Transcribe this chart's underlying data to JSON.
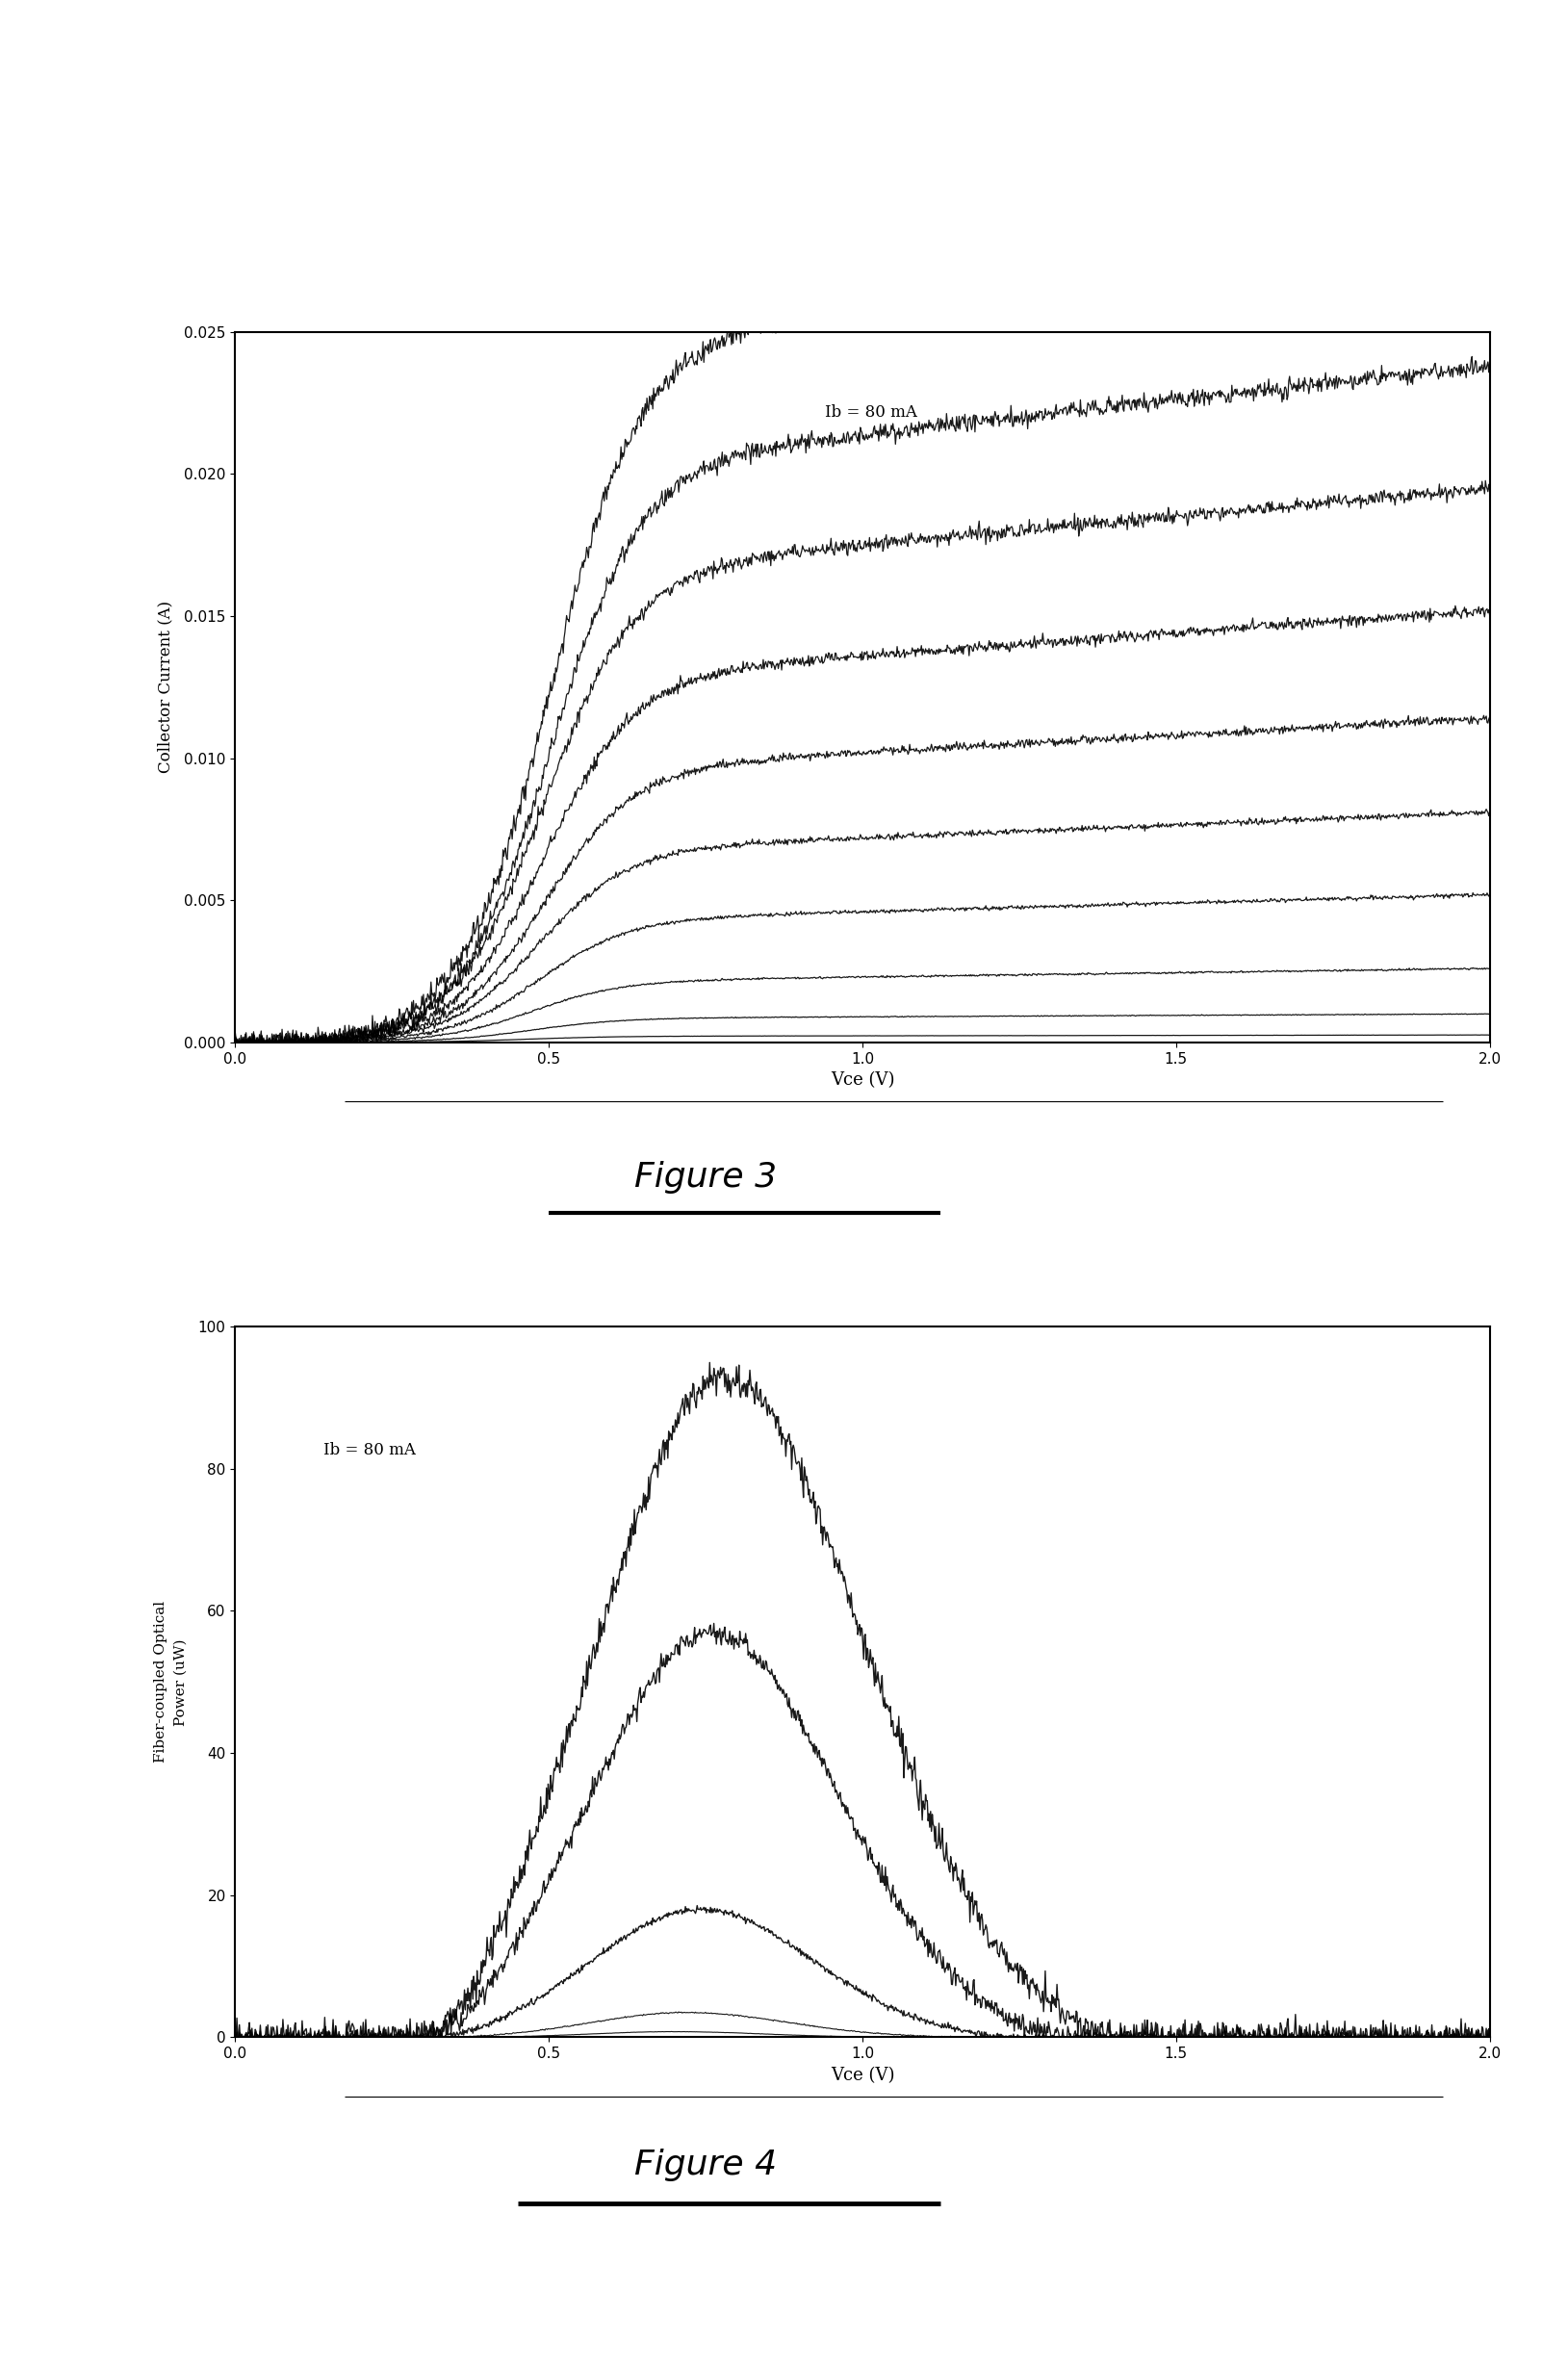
{
  "fig3": {
    "xlabel": "Vce (V)",
    "ylabel": "Collector Current (A)",
    "annotation": "Ib = 80 mA",
    "xlim": [
      0.0,
      2.0
    ],
    "ylim": [
      0.0,
      0.025
    ],
    "xticks": [
      0.0,
      0.5,
      1.0,
      1.5,
      2.0
    ],
    "yticks": [
      0.0,
      0.005,
      0.01,
      0.015,
      0.02,
      0.025
    ],
    "curves": [
      {
        "Isat": 0.023,
        "slope": 0.0028,
        "vth": 0.5,
        "k": 14
      },
      {
        "Isat": 0.019,
        "slope": 0.0024,
        "vth": 0.5,
        "k": 14
      },
      {
        "Isat": 0.0155,
        "slope": 0.002,
        "vth": 0.49,
        "k": 14
      },
      {
        "Isat": 0.012,
        "slope": 0.0016,
        "vth": 0.49,
        "k": 14
      },
      {
        "Isat": 0.009,
        "slope": 0.0012,
        "vth": 0.49,
        "k": 14
      },
      {
        "Isat": 0.0063,
        "slope": 0.0009,
        "vth": 0.48,
        "k": 14
      },
      {
        "Isat": 0.004,
        "slope": 0.0006,
        "vth": 0.48,
        "k": 14
      },
      {
        "Isat": 0.002,
        "slope": 0.0003,
        "vth": 0.47,
        "k": 14
      },
      {
        "Isat": 0.0008,
        "slope": 0.0001,
        "vth": 0.47,
        "k": 14
      },
      {
        "Isat": 0.0002,
        "slope": 3e-05,
        "vth": 0.46,
        "k": 14
      }
    ]
  },
  "fig4": {
    "xlabel": "Vce (V)",
    "ylabel": "Fiber-coupled Optical\nPower (uW)",
    "annotation": "Ib = 80 mA",
    "xlim": [
      0.0,
      2.0
    ],
    "ylim": [
      0,
      100
    ],
    "xticks": [
      0.0,
      0.5,
      1.0,
      1.5,
      2.0
    ],
    "yticks": [
      0,
      20,
      40,
      60,
      80,
      100
    ],
    "curves": [
      {
        "peak": 93,
        "vpeak": 0.78,
        "sigma_l": 0.2,
        "sigma_r": 0.22,
        "vstart": 0.37,
        "vend": 1.35
      },
      {
        "peak": 57,
        "vpeak": 0.76,
        "sigma_l": 0.19,
        "sigma_r": 0.2,
        "vstart": 0.37,
        "vend": 1.28
      },
      {
        "peak": 18,
        "vpeak": 0.74,
        "sigma_l": 0.17,
        "sigma_r": 0.18,
        "vstart": 0.37,
        "vend": 1.2
      },
      {
        "peak": 3.5,
        "vpeak": 0.72,
        "sigma_l": 0.15,
        "sigma_r": 0.16,
        "vstart": 0.37,
        "vend": 1.15
      },
      {
        "peak": 0.8,
        "vpeak": 0.7,
        "sigma_l": 0.13,
        "sigma_r": 0.14,
        "vstart": 0.37,
        "vend": 1.1
      }
    ]
  },
  "fig3_label": "Figure 3",
  "fig4_label": "Figure 4",
  "background_color": "#ffffff",
  "line_color": "#000000",
  "ann_x_fig3": 0.47,
  "ann_y_fig3": 0.88,
  "ann_x_fig4": 0.07,
  "ann_y_fig4": 0.82
}
